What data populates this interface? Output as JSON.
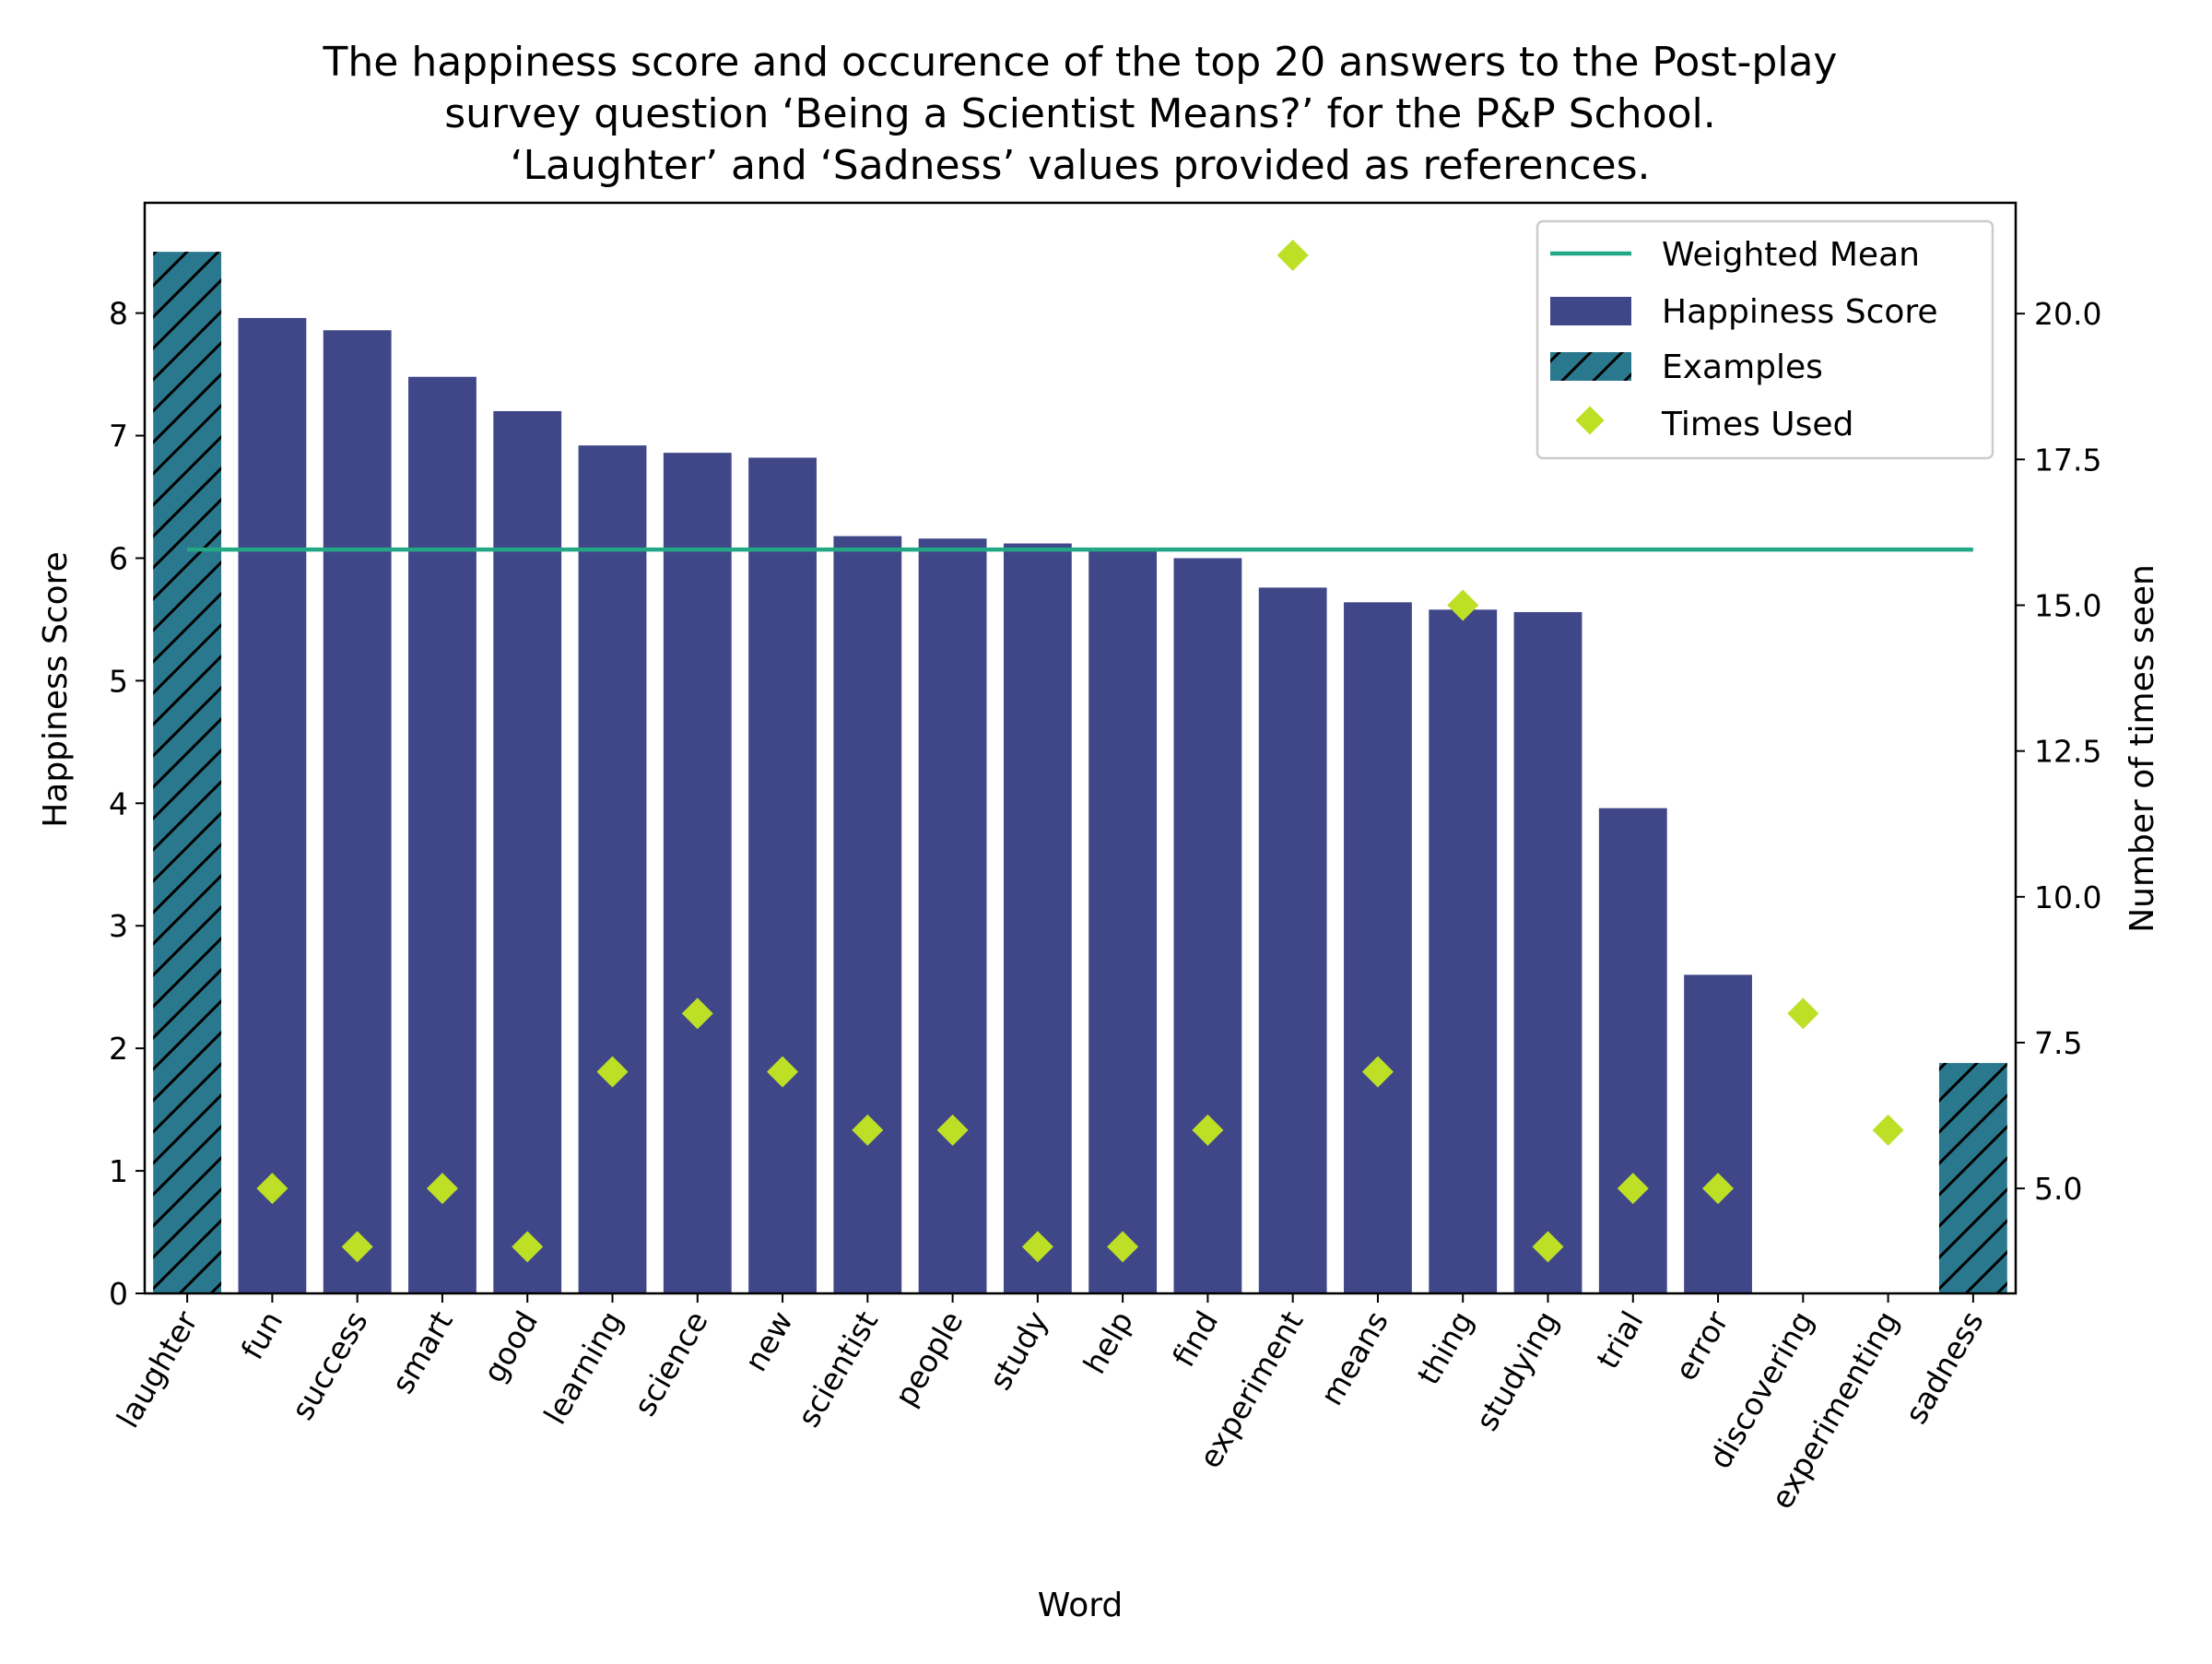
{
  "chart_data": {
    "type": "bar",
    "title_lines": [
      "The happiness score and occurence of the top 20 answers to the Post-play",
      "survey question ‘Being a Scientist Means?’ for the P&P School.",
      "‘Laughter’ and ‘Sadness’ values provided as references."
    ],
    "xlabel": "Word",
    "ylabel": "Happiness Score",
    "ylabel_right": "Number of times seen",
    "ylim": [
      0,
      8.9
    ],
    "ylim_right": [
      3.2,
      21.9
    ],
    "yticks": [
      0,
      1,
      2,
      3,
      4,
      5,
      6,
      7,
      8
    ],
    "yticks_right": [
      "5.0",
      "7.5",
      "10.0",
      "12.5",
      "15.0",
      "17.5",
      "20.0"
    ],
    "categories": [
      "laughter",
      "fun",
      "success",
      "smart",
      "good",
      "learning",
      "science",
      "new",
      "scientist",
      "people",
      "study",
      "help",
      "find",
      "experiment",
      "means",
      "thing",
      "studying",
      "trial",
      "error",
      "discovering",
      "experimenting",
      "sadness"
    ],
    "series": [
      {
        "name": "Happiness Score",
        "color": "#404788",
        "values": [
          null,
          7.96,
          7.86,
          7.48,
          7.2,
          6.92,
          6.86,
          6.82,
          6.18,
          6.16,
          6.12,
          6.06,
          6.0,
          5.76,
          5.64,
          5.58,
          5.56,
          3.96,
          2.6,
          null,
          null,
          null
        ]
      },
      {
        "name": "Examples",
        "color": "#2a788e",
        "pattern": "hatch",
        "values": [
          8.5,
          null,
          null,
          null,
          null,
          null,
          null,
          null,
          null,
          null,
          null,
          null,
          null,
          null,
          null,
          null,
          null,
          null,
          null,
          null,
          null,
          1.88
        ]
      },
      {
        "name": "Times Used",
        "color": "#bddf26",
        "marker": "diamond",
        "axis": "right",
        "values": [
          null,
          5,
          4,
          5,
          4,
          7,
          8,
          7,
          6,
          6,
          4,
          4,
          6,
          21,
          7,
          15,
          4,
          5,
          5,
          8,
          6,
          null
        ]
      }
    ],
    "weighted_mean": {
      "name": "Weighted Mean",
      "value": 6.07,
      "color": "#22a884"
    },
    "legend": {
      "position": "upper right",
      "entries": [
        "Weighted Mean",
        "Happiness Score",
        "Examples",
        "Times Used"
      ]
    }
  }
}
